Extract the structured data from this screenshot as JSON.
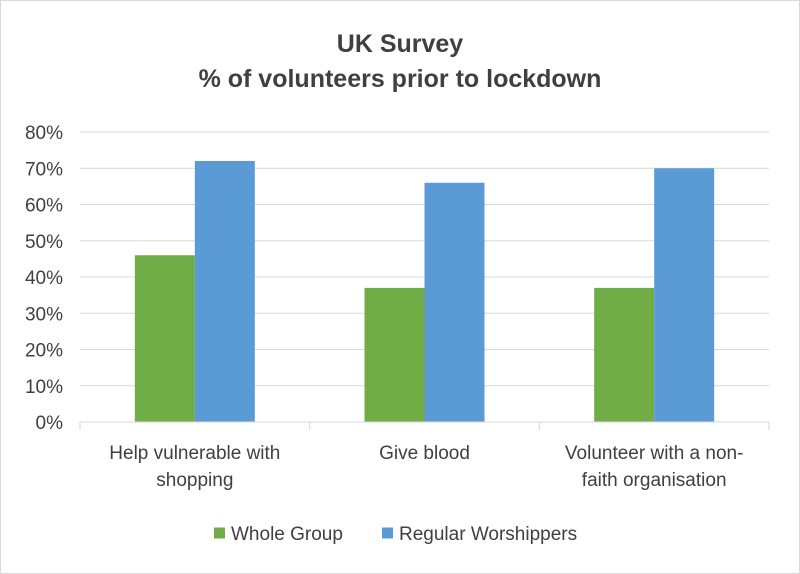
{
  "chart_data": {
    "type": "bar",
    "title_lines": [
      "UK Survey",
      "% of volunteers prior to lockdown"
    ],
    "categories": [
      [
        "Help vulnerable with",
        "shopping"
      ],
      [
        "Give blood"
      ],
      [
        "Volunteer with a non-",
        "faith organisation"
      ]
    ],
    "series": [
      {
        "name": "Whole Group",
        "color": "#70ad47",
        "values": [
          0.46,
          0.37,
          0.37
        ]
      },
      {
        "name": "Regular Worshippers",
        "color": "#5b9bd5",
        "values": [
          0.72,
          0.66,
          0.7
        ]
      }
    ],
    "yticks": [
      "0%",
      "10%",
      "20%",
      "30%",
      "40%",
      "50%",
      "60%",
      "70%",
      "80%"
    ],
    "ylim": [
      0,
      0.8
    ],
    "grid": true,
    "legend_position": "bottom"
  }
}
